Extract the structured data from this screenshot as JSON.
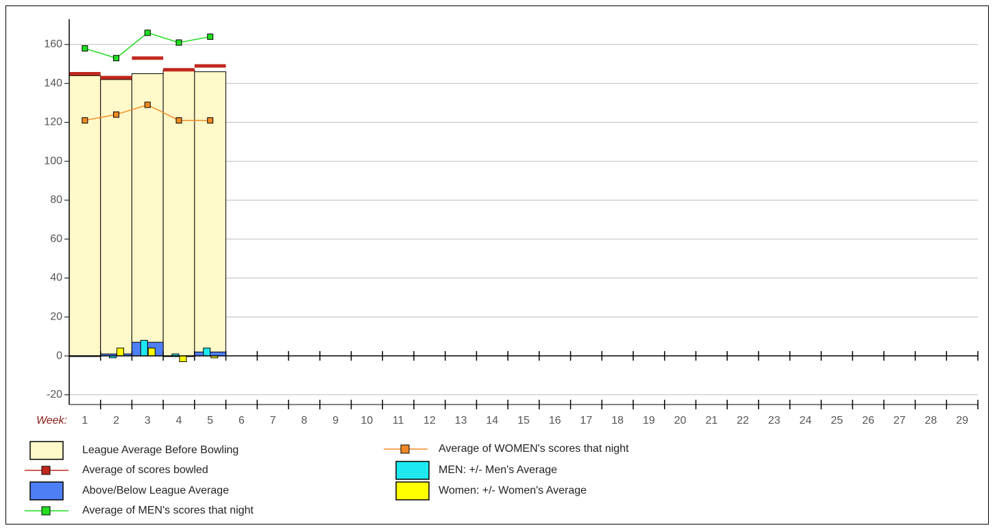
{
  "chart_data": {
    "type": "bar",
    "x_label": "Week:",
    "categories": [
      "1",
      "2",
      "3",
      "4",
      "5",
      "6",
      "7",
      "8",
      "9",
      "10",
      "11",
      "12",
      "13",
      "14",
      "15",
      "16",
      "17",
      "18",
      "19",
      "20",
      "21",
      "22",
      "23",
      "24",
      "25",
      "26",
      "27",
      "28",
      "29"
    ],
    "ylim": [
      -25,
      173
    ],
    "yticks": [
      -20,
      0,
      20,
      40,
      60,
      80,
      100,
      120,
      140,
      160
    ],
    "grid": true,
    "series": [
      {
        "name": "League Average Before Bowling",
        "kind": "bar",
        "color": "#fff8c8",
        "values": [
          144,
          142,
          145,
          147,
          146,
          null,
          null,
          null,
          null,
          null,
          null,
          null,
          null,
          null,
          null,
          null,
          null,
          null,
          null,
          null,
          null,
          null,
          null,
          null,
          null,
          null,
          null,
          null,
          null
        ]
      },
      {
        "name": "Average of scores bowled",
        "kind": "dash",
        "color": "#c0281e",
        "values": [
          145,
          143,
          153,
          147,
          149,
          null,
          null,
          null,
          null,
          null,
          null,
          null,
          null,
          null,
          null,
          null,
          null,
          null,
          null,
          null,
          null,
          null,
          null,
          null,
          null,
          null,
          null,
          null,
          null
        ]
      },
      {
        "name": "Above/Below League Average",
        "kind": "bar",
        "color": "#4f7ff7",
        "values": [
          0,
          1,
          7,
          0,
          2,
          null,
          null,
          null,
          null,
          null,
          null,
          null,
          null,
          null,
          null,
          null,
          null,
          null,
          null,
          null,
          null,
          null,
          null,
          null,
          null,
          null,
          null,
          null,
          null
        ]
      },
      {
        "name": "Average of MEN's scores that night",
        "kind": "line",
        "color": "#22dd22",
        "values": [
          158,
          153,
          166,
          161,
          164,
          null,
          null,
          null,
          null,
          null,
          null,
          null,
          null,
          null,
          null,
          null,
          null,
          null,
          null,
          null,
          null,
          null,
          null,
          null,
          null,
          null,
          null,
          null,
          null
        ]
      },
      {
        "name": "Average of WOMEN's scores that night",
        "kind": "line",
        "color": "#f08a24",
        "values": [
          121,
          124,
          129,
          121,
          121,
          null,
          null,
          null,
          null,
          null,
          null,
          null,
          null,
          null,
          null,
          null,
          null,
          null,
          null,
          null,
          null,
          null,
          null,
          null,
          null,
          null,
          null,
          null,
          null
        ]
      },
      {
        "name": "MEN: +/- Men's Average",
        "kind": "narrow-left",
        "color": "#1ee8f0",
        "values": [
          null,
          -1,
          8,
          1,
          4,
          null,
          null,
          null,
          null,
          null,
          null,
          null,
          null,
          null,
          null,
          null,
          null,
          null,
          null,
          null,
          null,
          null,
          null,
          null,
          null,
          null,
          null,
          null,
          null
        ]
      },
      {
        "name": "Women: +/- Women's Average",
        "kind": "narrow-right",
        "color": "#ffff00",
        "values": [
          null,
          4,
          4,
          -3,
          -1,
          null,
          null,
          null,
          null,
          null,
          null,
          null,
          null,
          null,
          null,
          null,
          null,
          null,
          null,
          null,
          null,
          null,
          null,
          null,
          null,
          null,
          null,
          null,
          null
        ]
      }
    ]
  }
}
